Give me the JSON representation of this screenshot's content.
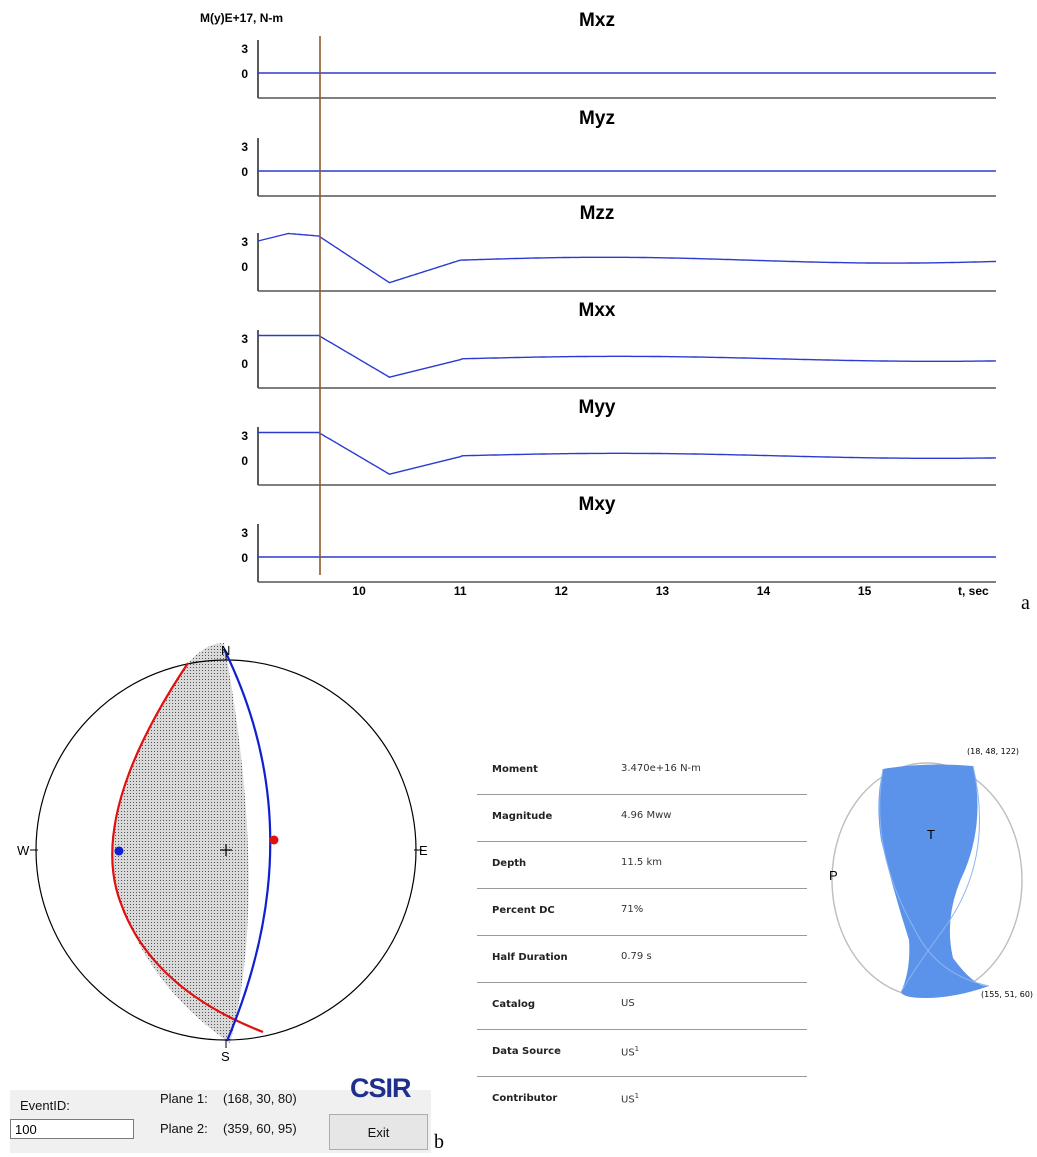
{
  "figure_a": {
    "panel_label": "a",
    "y_unit_label": "M(y)E+17, N-m",
    "x_unit_label": "t, sec",
    "x_ticks": [
      "10",
      "11",
      "12",
      "13",
      "14",
      "15"
    ],
    "traces": [
      {
        "name": "Mxz",
        "y_ticks": [
          "3",
          "0"
        ],
        "color": "#2b3bd1"
      },
      {
        "name": "Myz",
        "y_ticks": [
          "3",
          "0"
        ],
        "color": "#2b3bd1"
      },
      {
        "name": "Mzz",
        "y_ticks": [
          "3",
          "0"
        ],
        "color": "#2b3bd1"
      },
      {
        "name": "Mxx",
        "y_ticks": [
          "3",
          "0"
        ],
        "color": "#2b3bd1"
      },
      {
        "name": "Myy",
        "y_ticks": [
          "3",
          "0"
        ],
        "color": "#2b3bd1"
      },
      {
        "name": "Mxy",
        "y_ticks": [
          "3",
          "0"
        ],
        "color": "#2b3bd1"
      }
    ],
    "marker_color": "#8b5a2b"
  },
  "figure_b": {
    "panel_label": "b",
    "beachball": {
      "north": "N",
      "south": "S",
      "west": "W",
      "east": "E",
      "plane1_color": "#e01010",
      "plane2_color": "#1020d0"
    },
    "event_id_label": "EventID:",
    "event_id_value": "100",
    "plane1_label": "Plane 1:",
    "plane1_value": "(168, 30, 80)",
    "plane2_label": "Plane 2:",
    "plane2_value": "(359, 60, 95)",
    "logo_text": "CSIR",
    "exit_label": "Exit"
  },
  "moment_tensor": {
    "rows": [
      {
        "label": "Moment",
        "value": "3.470e+16 N-m",
        "sup": ""
      },
      {
        "label": "Magnitude",
        "value": "4.96 Mww",
        "sup": ""
      },
      {
        "label": "Depth",
        "value": "11.5 km",
        "sup": ""
      },
      {
        "label": "Percent DC",
        "value": "71%",
        "sup": ""
      },
      {
        "label": "Half Duration",
        "value": "0.79 s",
        "sup": ""
      },
      {
        "label": "Catalog",
        "value": "US",
        "sup": ""
      },
      {
        "label": "Data Source",
        "value": "US",
        "sup": "1"
      },
      {
        "label": "Contributor",
        "value": "US",
        "sup": "1"
      }
    ],
    "ball": {
      "t_label": "T",
      "p_label": "P",
      "top_plane_label": "(18, 48, 122)",
      "bottom_plane_label": "(155, 51, 60)",
      "fill_color": "#5b93ea"
    }
  }
}
